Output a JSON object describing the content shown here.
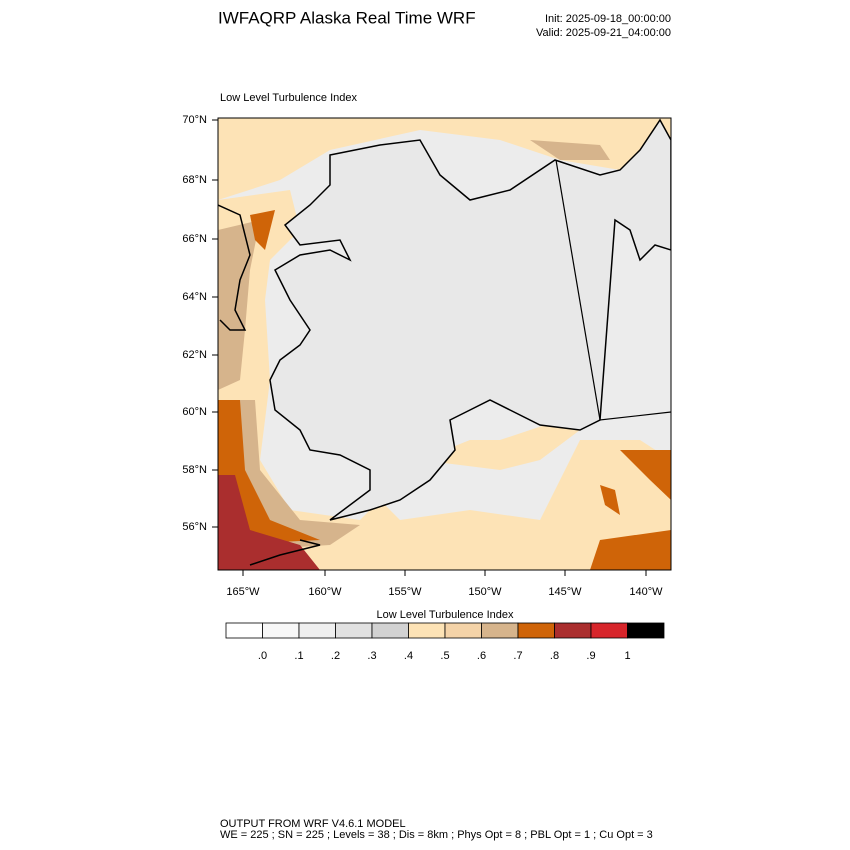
{
  "header": {
    "title": "IWFAQRP Alaska Real Time WRF",
    "init": "Init: 2025-09-18_00:00:00",
    "valid": "Valid: 2025-09-21_04:00:00"
  },
  "map": {
    "title": "Low Level Turbulence Index",
    "lat_labels": [
      "70°N",
      "68°N",
      "66°N",
      "64°N",
      "62°N",
      "60°N",
      "58°N",
      "56°N"
    ],
    "lon_labels": [
      "165°W",
      "160°W",
      "155°W",
      "150°W",
      "145°W",
      "140°W"
    ]
  },
  "colorbar": {
    "title": "Low Level Turbulence Index",
    "colors": [
      "#ffffff",
      "#f7f7f7",
      "#efefef",
      "#e1e1e1",
      "#d2d2d2",
      "#fde3b6",
      "#f4d3a8",
      "#d6b48c",
      "#cf6408",
      "#aa2e2e",
      "#d7252b",
      "#000000"
    ],
    "labels": [
      ".0",
      ".1",
      ".2",
      ".3",
      ".4",
      ".5",
      ".6",
      ".7",
      ".8",
      ".9",
      "1"
    ]
  },
  "footer": {
    "line1": "OUTPUT FROM WRF V4.6.1 MODEL",
    "line2": "WE = 225 ; SN = 225 ; Levels = 38 ; Dis = 8km ; Phys Opt = 8 ; PBL Opt = 1 ; Cu Opt = 3"
  }
}
